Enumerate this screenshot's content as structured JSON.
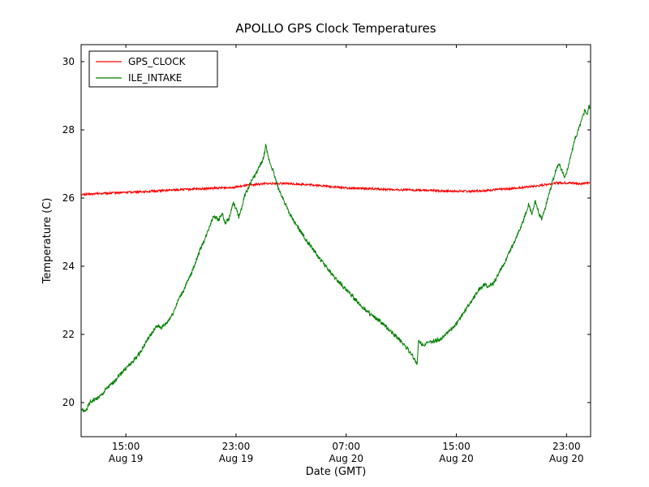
{
  "chart_data": {
    "type": "line",
    "title": "APOLLO GPS Clock Temperatures",
    "xlabel": "Date (GMT)",
    "ylabel": "Temperature (C)",
    "x_unit": "hours since Aug 19 00:00 GMT",
    "xlim": [
      11.75,
      48.75
    ],
    "ylim": [
      19.0,
      30.5
    ],
    "grid": false,
    "legend_position": "upper left",
    "xticks": [
      {
        "value": 15,
        "label": "15:00",
        "sublabel": "Aug 19"
      },
      {
        "value": 23,
        "label": "23:00",
        "sublabel": "Aug 19"
      },
      {
        "value": 31,
        "label": "07:00",
        "sublabel": "Aug 20"
      },
      {
        "value": 39,
        "label": "15:00",
        "sublabel": "Aug 20"
      },
      {
        "value": 47,
        "label": "23:00",
        "sublabel": "Aug 20"
      }
    ],
    "yticks": [
      "20",
      "22",
      "24",
      "26",
      "28",
      "30"
    ],
    "ytick_values": [
      20,
      22,
      24,
      26,
      28,
      30
    ],
    "series": [
      {
        "name": "GPS_CLOCK",
        "color": "#ff0000",
        "noise": 0.03,
        "points": [
          [
            11.8,
            26.1
          ],
          [
            13,
            26.13
          ],
          [
            15,
            26.17
          ],
          [
            17,
            26.2
          ],
          [
            19,
            26.25
          ],
          [
            21,
            26.28
          ],
          [
            22,
            26.3
          ],
          [
            23,
            26.32
          ],
          [
            24,
            26.38
          ],
          [
            25,
            26.42
          ],
          [
            26,
            26.43
          ],
          [
            27,
            26.42
          ],
          [
            28,
            26.4
          ],
          [
            29,
            26.37
          ],
          [
            30,
            26.33
          ],
          [
            31,
            26.3
          ],
          [
            32,
            26.28
          ],
          [
            33,
            26.27
          ],
          [
            34,
            26.25
          ],
          [
            35,
            26.24
          ],
          [
            36,
            26.23
          ],
          [
            37,
            26.22
          ],
          [
            38,
            26.21
          ],
          [
            39,
            26.2
          ],
          [
            40,
            26.2
          ],
          [
            41,
            26.22
          ],
          [
            42,
            26.25
          ],
          [
            43,
            26.28
          ],
          [
            44,
            26.32
          ],
          [
            45,
            26.36
          ],
          [
            45.8,
            26.42
          ],
          [
            46.5,
            26.45
          ],
          [
            47.5,
            26.44
          ],
          [
            48.2,
            26.42
          ],
          [
            48.7,
            26.45
          ]
        ]
      },
      {
        "name": "ILE_INTAKE",
        "color": "#008000",
        "noise": 0.06,
        "points": [
          [
            11.8,
            19.8
          ],
          [
            12.0,
            19.72
          ],
          [
            12.4,
            20.0
          ],
          [
            12.8,
            20.1
          ],
          [
            13.2,
            20.2
          ],
          [
            13.6,
            20.4
          ],
          [
            14.0,
            20.55
          ],
          [
            14.5,
            20.8
          ],
          [
            15.0,
            21.0
          ],
          [
            15.5,
            21.2
          ],
          [
            16.0,
            21.45
          ],
          [
            16.5,
            21.8
          ],
          [
            17.0,
            22.1
          ],
          [
            17.3,
            22.25
          ],
          [
            17.6,
            22.2
          ],
          [
            18.0,
            22.35
          ],
          [
            18.4,
            22.6
          ],
          [
            18.8,
            23.0
          ],
          [
            19.2,
            23.3
          ],
          [
            19.6,
            23.65
          ],
          [
            20.0,
            24.05
          ],
          [
            20.4,
            24.5
          ],
          [
            20.8,
            24.85
          ],
          [
            21.1,
            25.2
          ],
          [
            21.4,
            25.5
          ],
          [
            21.7,
            25.35
          ],
          [
            22.0,
            25.55
          ],
          [
            22.2,
            25.25
          ],
          [
            22.5,
            25.4
          ],
          [
            22.8,
            25.85
          ],
          [
            23.0,
            25.7
          ],
          [
            23.2,
            25.45
          ],
          [
            23.4,
            25.7
          ],
          [
            23.6,
            26.05
          ],
          [
            23.8,
            26.2
          ],
          [
            24.0,
            26.4
          ],
          [
            24.2,
            26.55
          ],
          [
            24.5,
            26.75
          ],
          [
            24.8,
            27.0
          ],
          [
            25.0,
            27.15
          ],
          [
            25.15,
            27.55
          ],
          [
            25.3,
            27.25
          ],
          [
            25.5,
            27.0
          ],
          [
            25.7,
            26.8
          ],
          [
            25.9,
            26.5
          ],
          [
            26.1,
            26.25
          ],
          [
            26.4,
            26.0
          ],
          [
            26.7,
            25.7
          ],
          [
            27.0,
            25.45
          ],
          [
            27.4,
            25.2
          ],
          [
            27.8,
            24.95
          ],
          [
            28.2,
            24.7
          ],
          [
            28.6,
            24.5
          ],
          [
            29.0,
            24.25
          ],
          [
            29.4,
            24.05
          ],
          [
            29.8,
            23.85
          ],
          [
            30.2,
            23.65
          ],
          [
            30.6,
            23.5
          ],
          [
            31.0,
            23.3
          ],
          [
            31.4,
            23.15
          ],
          [
            31.8,
            22.95
          ],
          [
            32.2,
            22.8
          ],
          [
            32.6,
            22.65
          ],
          [
            33.0,
            22.5
          ],
          [
            33.4,
            22.4
          ],
          [
            33.8,
            22.25
          ],
          [
            34.2,
            22.1
          ],
          [
            34.6,
            21.95
          ],
          [
            35.0,
            21.8
          ],
          [
            35.4,
            21.6
          ],
          [
            35.7,
            21.45
          ],
          [
            36.0,
            21.25
          ],
          [
            36.15,
            21.08
          ],
          [
            36.25,
            21.8
          ],
          [
            36.6,
            21.7
          ],
          [
            37.0,
            21.75
          ],
          [
            37.4,
            21.8
          ],
          [
            37.8,
            21.85
          ],
          [
            38.2,
            22.0
          ],
          [
            38.6,
            22.15
          ],
          [
            39.0,
            22.3
          ],
          [
            39.4,
            22.55
          ],
          [
            39.8,
            22.8
          ],
          [
            40.2,
            23.05
          ],
          [
            40.6,
            23.3
          ],
          [
            41.0,
            23.45
          ],
          [
            41.3,
            23.4
          ],
          [
            41.7,
            23.5
          ],
          [
            42.1,
            23.8
          ],
          [
            42.5,
            24.1
          ],
          [
            42.9,
            24.45
          ],
          [
            43.3,
            24.8
          ],
          [
            43.7,
            25.15
          ],
          [
            44.0,
            25.5
          ],
          [
            44.25,
            25.8
          ],
          [
            44.5,
            25.55
          ],
          [
            44.75,
            25.9
          ],
          [
            45.0,
            25.55
          ],
          [
            45.2,
            25.4
          ],
          [
            45.45,
            25.7
          ],
          [
            45.7,
            26.1
          ],
          [
            46.0,
            26.5
          ],
          [
            46.3,
            26.9
          ],
          [
            46.5,
            27.0
          ],
          [
            46.7,
            26.75
          ],
          [
            46.9,
            26.6
          ],
          [
            47.1,
            26.9
          ],
          [
            47.35,
            27.3
          ],
          [
            47.6,
            27.7
          ],
          [
            47.9,
            28.05
          ],
          [
            48.15,
            28.35
          ],
          [
            48.35,
            28.6
          ],
          [
            48.5,
            28.45
          ],
          [
            48.65,
            28.7
          ],
          [
            48.7,
            28.65
          ]
        ]
      }
    ]
  }
}
